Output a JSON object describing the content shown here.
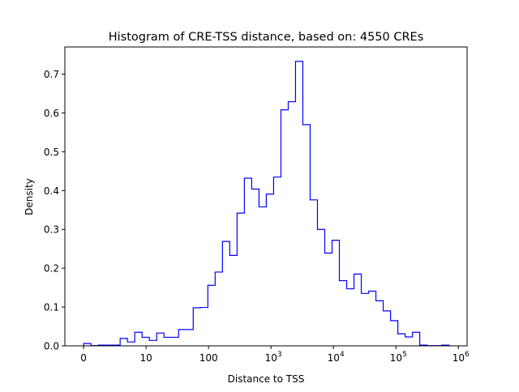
{
  "chart_data": {
    "type": "histogram-step",
    "title": "Histogram of CRE-TSS distance, based on: 4550 CREs",
    "xlabel": "Distance to TSS",
    "ylabel": "Density",
    "x_scale": "log10 (axis units = decades; 0 shown at 0)",
    "xlim": [
      -0.3,
      6.14
    ],
    "ylim": [
      0,
      0.77
    ],
    "bin_start": 0,
    "bin_width": 0.117,
    "values": [
      0.006,
      0.0005,
      0.002,
      0.002,
      0.002,
      0.019,
      0.01,
      0.035,
      0.022,
      0.014,
      0.033,
      0.022,
      0.022,
      0.042,
      0.042,
      0.098,
      0.099,
      0.156,
      0.19,
      0.269,
      0.233,
      0.342,
      0.432,
      0.404,
      0.358,
      0.391,
      0.435,
      0.608,
      0.629,
      0.733,
      0.57,
      0.376,
      0.3,
      0.239,
      0.272,
      0.168,
      0.147,
      0.185,
      0.135,
      0.141,
      0.116,
      0.09,
      0.065,
      0.031,
      0.023,
      0.035,
      0.002,
      0.0005,
      0.0005,
      0.002
    ],
    "line_color": "#0000ff",
    "x_ticks": [
      {
        "pos": 0,
        "label": "0",
        "exp": ""
      },
      {
        "pos": 1,
        "label": "10",
        "exp": ""
      },
      {
        "pos": 2,
        "label": "100",
        "exp": ""
      },
      {
        "pos": 3,
        "label": "10",
        "exp": "3"
      },
      {
        "pos": 4,
        "label": "10",
        "exp": "4"
      },
      {
        "pos": 5,
        "label": "10",
        "exp": "5"
      },
      {
        "pos": 6,
        "label": "10",
        "exp": "6"
      }
    ],
    "y_ticks": [
      {
        "value": 0.0,
        "label": "0.0"
      },
      {
        "value": 0.1,
        "label": "0.1"
      },
      {
        "value": 0.2,
        "label": "0.2"
      },
      {
        "value": 0.3,
        "label": "0.3"
      },
      {
        "value": 0.4,
        "label": "0.4"
      },
      {
        "value": 0.5,
        "label": "0.5"
      },
      {
        "value": 0.6,
        "label": "0.6"
      },
      {
        "value": 0.7,
        "label": "0.7"
      }
    ],
    "grid": false
  }
}
